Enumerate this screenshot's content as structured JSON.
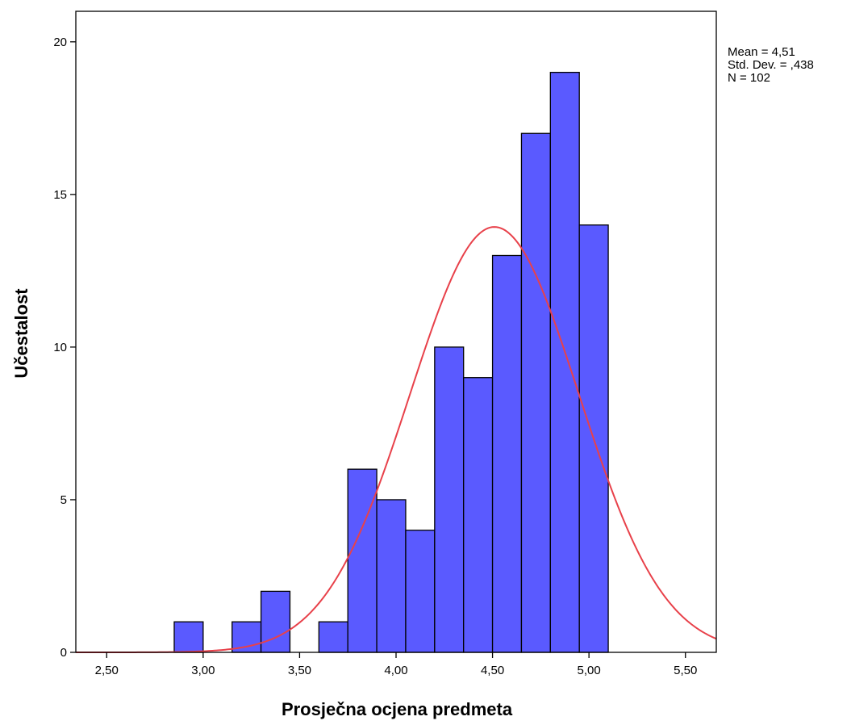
{
  "chart_data": {
    "type": "bar",
    "subtype": "histogram-with-normal-curve",
    "xlabel": "Prosječna ocjena predmeta",
    "ylabel": "Učestalost",
    "xlim": [
      2.34,
      5.66
    ],
    "ylim": [
      0,
      21
    ],
    "x_ticks": [
      {
        "value": 2.5,
        "label": "2,50"
      },
      {
        "value": 3.0,
        "label": "3,00"
      },
      {
        "value": 3.5,
        "label": "3,50"
      },
      {
        "value": 4.0,
        "label": "4,00"
      },
      {
        "value": 4.5,
        "label": "4,50"
      },
      {
        "value": 5.0,
        "label": "5,00"
      },
      {
        "value": 5.5,
        "label": "5,50"
      }
    ],
    "y_ticks": [
      {
        "value": 0,
        "label": "0"
      },
      {
        "value": 5,
        "label": "5"
      },
      {
        "value": 10,
        "label": "10"
      },
      {
        "value": 15,
        "label": "15"
      },
      {
        "value": 20,
        "label": "20"
      }
    ],
    "bins": [
      {
        "start": 2.85,
        "end": 3.0,
        "count": 1
      },
      {
        "start": 3.15,
        "end": 3.3,
        "count": 1
      },
      {
        "start": 3.3,
        "end": 3.45,
        "count": 2
      },
      {
        "start": 3.6,
        "end": 3.75,
        "count": 1
      },
      {
        "start": 3.75,
        "end": 3.9,
        "count": 6
      },
      {
        "start": 3.9,
        "end": 4.05,
        "count": 5
      },
      {
        "start": 4.05,
        "end": 4.2,
        "count": 4
      },
      {
        "start": 4.2,
        "end": 4.35,
        "count": 10
      },
      {
        "start": 4.35,
        "end": 4.5,
        "count": 9
      },
      {
        "start": 4.5,
        "end": 4.65,
        "count": 13
      },
      {
        "start": 4.65,
        "end": 4.8,
        "count": 17
      },
      {
        "start": 4.8,
        "end": 4.95,
        "count": 19
      },
      {
        "start": 4.95,
        "end": 5.1,
        "count": 14
      }
    ],
    "normal_curve": {
      "mean": 4.51,
      "sd": 0.438,
      "n": 102,
      "bin_width": 0.15
    },
    "stats": [
      "Mean = 4,51",
      "Std. Dev. = ,438",
      "N = 102"
    ],
    "grid": false,
    "colors": {
      "bar_fill": "#5a5aff",
      "bar_stroke": "#000000",
      "curve": "#e8414a",
      "axis": "#000000"
    }
  }
}
